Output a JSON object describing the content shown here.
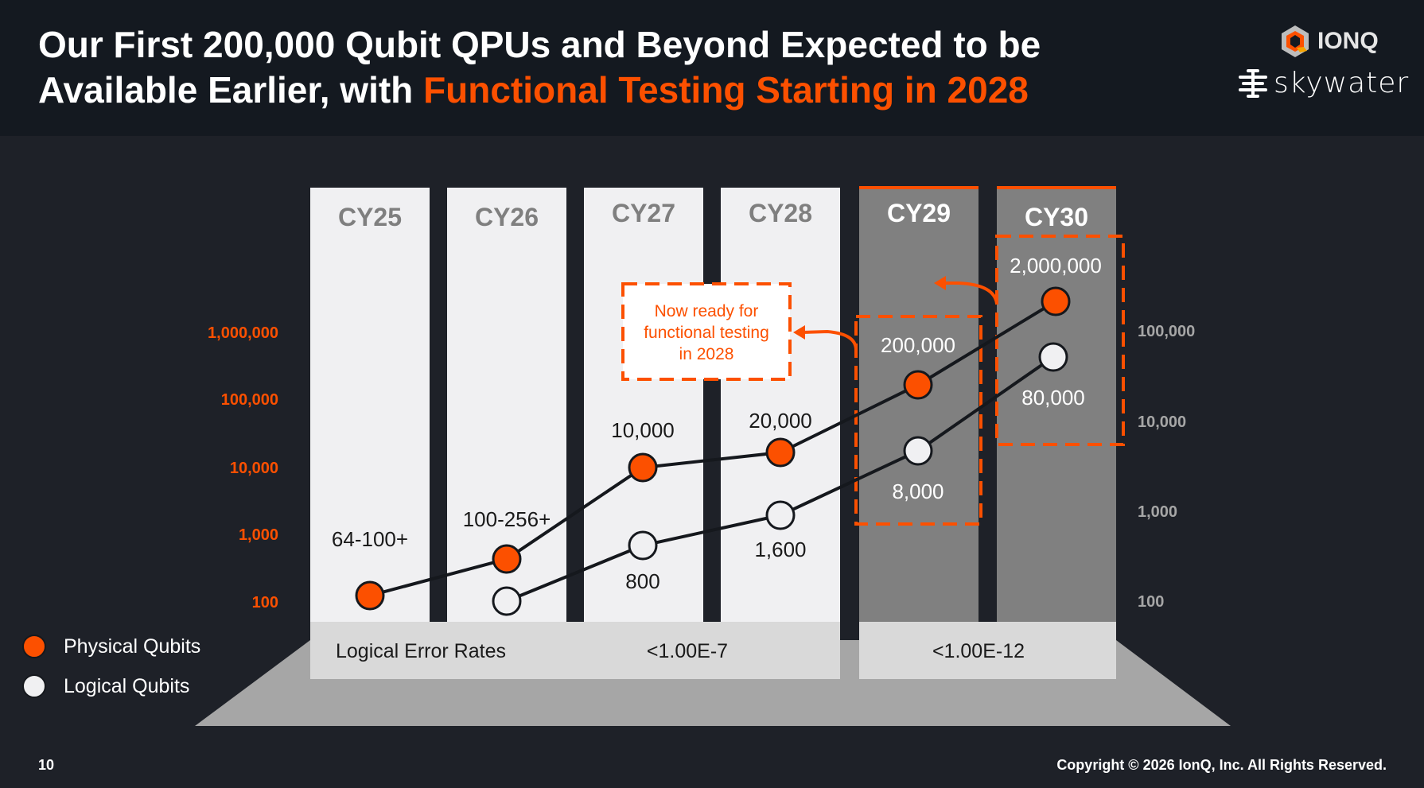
{
  "header": {
    "title_line1": "Our First 200,000 Qubit QPUs and Beyond Expected to be",
    "title_line2_white": "Available Earlier, with ",
    "title_line2_highlight": "Functional Testing Starting in 2028",
    "logo_ionq": "IONQ",
    "logo_skywater": "skywater"
  },
  "colors": {
    "accent": "#fc5000",
    "light_col": "#f0f0f2",
    "dark_col": "#808080",
    "band": "#d9d9d9"
  },
  "chart_data": {
    "type": "line",
    "categories": [
      "CY25",
      "CY26",
      "CY27",
      "CY28",
      "CY29",
      "CY30"
    ],
    "left_axis": {
      "scale": "log",
      "ticks": [
        "1,000,000",
        "100,000",
        "10,000",
        "1,000",
        "100"
      ]
    },
    "right_axis": {
      "scale": "log",
      "ticks": [
        "100,000",
        "10,000",
        "1,000",
        "100"
      ]
    },
    "series": [
      {
        "name": "Physical Qubits",
        "axis": "left",
        "values": [
          100,
          256,
          10000,
          20000,
          200000,
          2000000
        ],
        "labels": [
          "64-100+",
          "100-256+",
          "10,000",
          "20,000",
          "200,000",
          "2,000,000"
        ]
      },
      {
        "name": "Logical Qubits",
        "axis": "right",
        "values": [
          null,
          100,
          800,
          1600,
          8000,
          80000
        ],
        "labels": [
          "",
          "",
          "800",
          "1,600",
          "8,000",
          "80,000"
        ]
      }
    ],
    "error_rates": {
      "label": "Logical Error Rates",
      "cy25_28": "<1.00E-7",
      "cy29_30": "<1.00E-12"
    },
    "callout": [
      "Now ready for",
      "functional testing",
      "in 2028"
    ],
    "legend_placement": "bottom-left"
  },
  "footer": {
    "page": "10",
    "copyright": "Copyright © 2026 IonQ, Inc. All Rights Reserved."
  }
}
